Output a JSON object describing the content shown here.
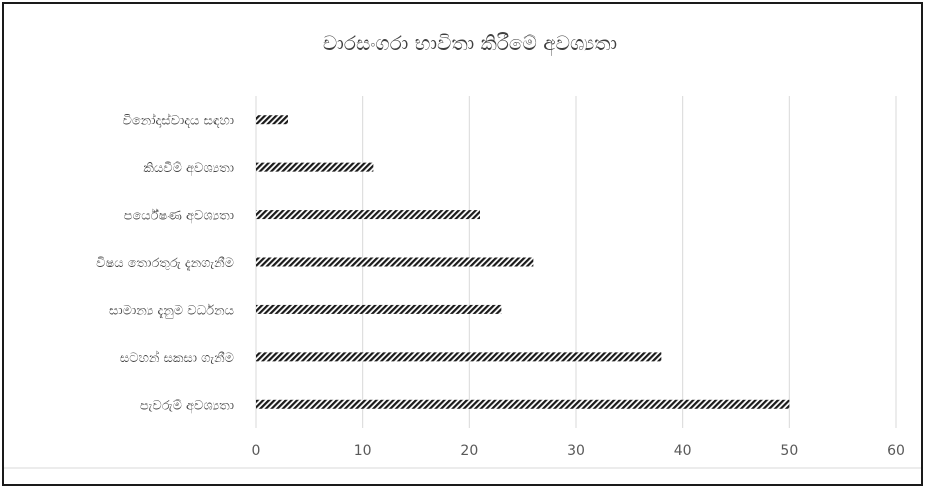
{
  "chart_data": {
    "type": "bar",
    "orientation": "horizontal",
    "title": "චාරසංගරා භාවිතා කිරීමේ අවශ්‍යතා",
    "categories": [
      "විනෝදාස්වාදය සඳහා",
      "කියවීම් අවශ්‍යතා",
      "පර්යේෂණ අවශ්‍යතා",
      "විෂය තොරතුරු දැනගැනීම",
      "සාමාන්‍ය දැනුම වර්ධනය",
      "සටහන් සකසා ගැනීම",
      "පැවරුම් අවශ්‍යතා"
    ],
    "values": [
      3,
      11,
      21,
      26,
      23,
      38,
      50
    ],
    "xlim": [
      0,
      60
    ],
    "xticks": [
      "0",
      "10",
      "20",
      "30",
      "40",
      "50",
      "60"
    ],
    "xlabel": "",
    "ylabel": "",
    "grid": true,
    "legend": "none",
    "bar_color": "#1a1a1a",
    "bar_pattern": "diagonal-hatch"
  }
}
